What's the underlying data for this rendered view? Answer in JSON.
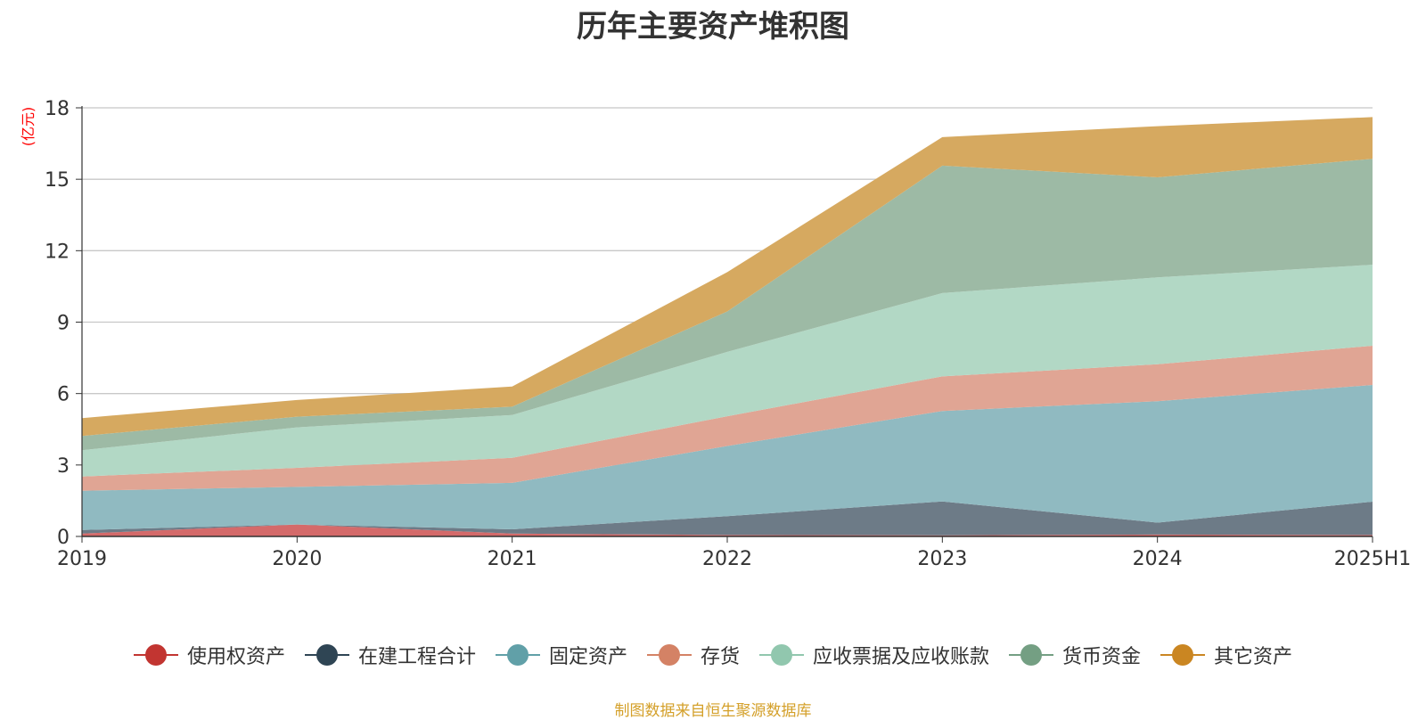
{
  "chart_data": {
    "type": "area",
    "stacked": true,
    "title": "历年主要资产堆积图",
    "ylabel": "(亿元)",
    "categories": [
      "2019",
      "2020",
      "2021",
      "2022",
      "2023",
      "2024",
      "2025H1"
    ],
    "ylim": [
      0,
      18
    ],
    "yticks": [
      0,
      3,
      6,
      9,
      12,
      15,
      18
    ],
    "grid": true,
    "legend_position": "bottom",
    "series": [
      {
        "name": "使用权资产",
        "color": "#c23531",
        "fill": "#d46a6a",
        "values": [
          0.12,
          0.5,
          0.12,
          0.06,
          0.05,
          0.08,
          0.06
        ]
      },
      {
        "name": "在建工程合计",
        "color": "#2f4554",
        "fill": "#6d7b87",
        "values": [
          0.15,
          0.0,
          0.18,
          0.79,
          1.42,
          0.5,
          1.4
        ]
      },
      {
        "name": "固定资产",
        "color": "#61a0a8",
        "fill": "#90bac1",
        "values": [
          1.65,
          1.58,
          1.95,
          2.95,
          3.8,
          5.1,
          4.9
        ]
      },
      {
        "name": "存货",
        "color": "#d48265",
        "fill": "#e0a594",
        "values": [
          0.6,
          0.8,
          1.05,
          1.25,
          1.45,
          1.55,
          1.65
        ]
      },
      {
        "name": "应收票据及应收账款",
        "color": "#91c7ae",
        "fill": "#b2d8c5",
        "values": [
          1.1,
          1.7,
          1.8,
          2.7,
          3.5,
          3.65,
          3.4
        ]
      },
      {
        "name": "货币资金",
        "color": "#749f83",
        "fill": "#9dbaa5",
        "values": [
          0.6,
          0.45,
          0.35,
          1.7,
          5.35,
          4.2,
          4.45
        ]
      },
      {
        "name": "其它资产",
        "color": "#ca8622",
        "fill": "#d6a960",
        "values": [
          0.75,
          0.7,
          0.85,
          1.65,
          1.2,
          2.15,
          1.75
        ]
      }
    ],
    "source_note": "制图数据来自恒生聚源数据库"
  }
}
